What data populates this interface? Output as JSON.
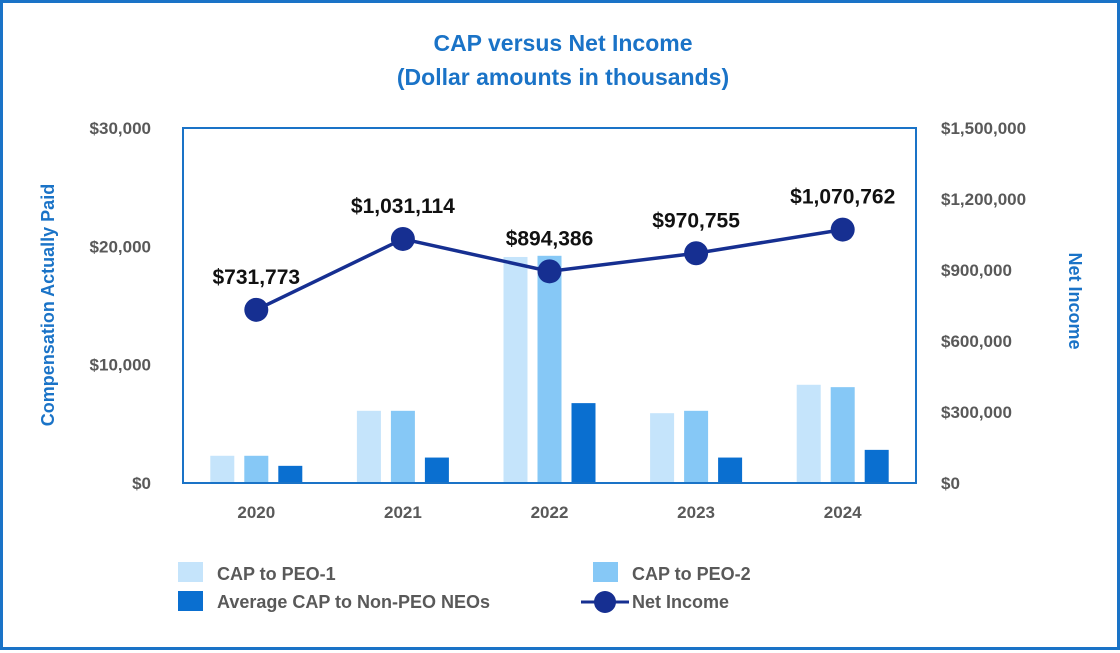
{
  "chart_data": {
    "type": "bar",
    "title": "CAP versus Net Income",
    "subtitle": "(Dollar amounts in thousands)",
    "categories": [
      "2020",
      "2021",
      "2022",
      "2023",
      "2024"
    ],
    "series": [
      {
        "name": "CAP to PEO-1",
        "axis": "left",
        "type": "bar",
        "color": "#c5e4fb",
        "values": [
          2300,
          6100,
          19100,
          5900,
          8300
        ]
      },
      {
        "name": "CAP to PEO-2",
        "axis": "left",
        "type": "bar",
        "color": "#86c8f6",
        "values": [
          2300,
          6100,
          19200,
          6100,
          8100
        ]
      },
      {
        "name": "Average CAP to Non-PEO NEOs",
        "axis": "left",
        "type": "bar",
        "color": "#0a6fd0",
        "values": [
          1450,
          2150,
          6750,
          2150,
          2800
        ]
      },
      {
        "name": "Net Income",
        "axis": "right",
        "type": "line",
        "color": "#162f91",
        "values": [
          731773,
          1031114,
          894386,
          970755,
          1070762
        ]
      }
    ],
    "data_labels": [
      "$731,773",
      "$1,031,114",
      "$894,386",
      "$970,755",
      "$1,070,762"
    ],
    "ylabel": "Compensation Actually Paid",
    "ylabel_right": "Net Income",
    "ylim": [
      0,
      30000
    ],
    "ylim_right": [
      0,
      1500000
    ],
    "yticks": [
      "$0",
      "$10,000",
      "$20,000",
      "$30,000"
    ],
    "yticks_right": [
      "$0",
      "$300,000",
      "$600,000",
      "$900,000",
      "$1,200,000",
      "$1,500,000"
    ],
    "grid": false,
    "legend_position": "bottom"
  },
  "colors": {
    "accent": "#1a73c7",
    "tick_text": "#595959",
    "line": "#162f91"
  }
}
